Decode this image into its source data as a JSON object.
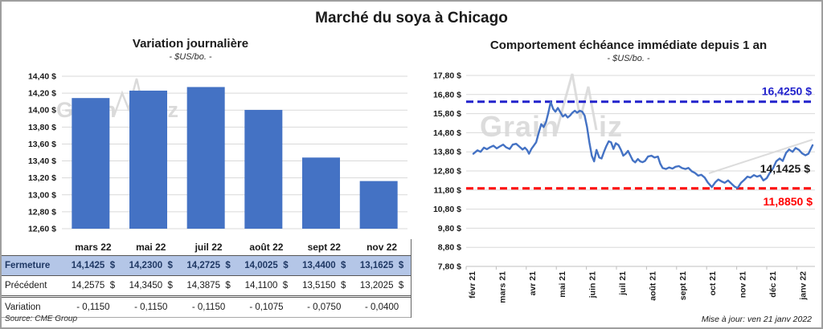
{
  "page": {
    "title": "Marché du soya à Chicago",
    "source": "Source: CME Group",
    "updated": "Mise à jour: ven 21 janv 2022",
    "watermark": "GrainViz"
  },
  "colors": {
    "bar": "#4472C4",
    "line": "#4472C4",
    "max_reference": "#2222CC",
    "min_reference": "#FF0000",
    "close_row_bg": "#B4C6E7",
    "close_row_text": "#1F3864",
    "variation_text": "#FF0000",
    "grid": "#D9D9D9",
    "axis": "#BFBFBF",
    "watermark": "#8f8f8f"
  },
  "chart_data": [
    {
      "type": "bar",
      "title": "Variation journalière",
      "subtitle": "- $US/bo. -",
      "categories": [
        "mars 22",
        "mai 22",
        "juil 22",
        "août 22",
        "sept 22",
        "nov 22"
      ],
      "values": [
        14.1425,
        14.23,
        14.2725,
        14.0025,
        13.44,
        13.1625
      ],
      "xlabel": "",
      "ylabel": "$US/bo.",
      "ylim": [
        12.6,
        14.4
      ],
      "ytick_step": 0.2,
      "ytick_labels": [
        "14,40 $",
        "14,20 $",
        "14,00 $",
        "13,80 $",
        "13,60 $",
        "13,40 $",
        "13,20 $",
        "13,00 $",
        "12,80 $",
        "12,60 $"
      ],
      "grid": true,
      "legend": "none"
    },
    {
      "type": "line",
      "title": "Comportement échéance immédiate depuis 1 an",
      "subtitle": "- $US/bo. -",
      "x_labels": [
        "févr 21",
        "mars 21",
        "avr 21",
        "mai 21",
        "juin 21",
        "juil 21",
        "août 21",
        "sept 21",
        "oct 21",
        "nov 21",
        "déc 21",
        "janv 22"
      ],
      "ylim": [
        7.8,
        17.8
      ],
      "ytick_step": 1.0,
      "ytick_labels": [
        "17,80 $",
        "16,80 $",
        "15,80 $",
        "14,80 $",
        "13,80 $",
        "12,80 $",
        "11,80 $",
        "10,80 $",
        "9,80 $",
        "8,80 $",
        "7,80 $"
      ],
      "grid": true,
      "legend": "none",
      "reference_lines": [
        {
          "id": "max",
          "value": 16.425,
          "label": "16,4250 $",
          "style": "dashed"
        },
        {
          "id": "min",
          "value": 11.885,
          "label": "11,8850 $",
          "style": "dashed"
        }
      ],
      "last_value": 14.1425,
      "last_value_label": "14,1425 $",
      "series": [
        {
          "name": "échéance immédiate",
          "points": [
            [
              0.0,
              13.7
            ],
            [
              0.012,
              13.88
            ],
            [
              0.021,
              13.8
            ],
            [
              0.031,
              14.02
            ],
            [
              0.04,
              13.94
            ],
            [
              0.05,
              14.05
            ],
            [
              0.059,
              14.12
            ],
            [
              0.069,
              13.98
            ],
            [
              0.078,
              14.08
            ],
            [
              0.088,
              14.18
            ],
            [
              0.097,
              14.03
            ],
            [
              0.107,
              13.95
            ],
            [
              0.116,
              14.18
            ],
            [
              0.126,
              14.22
            ],
            [
              0.135,
              14.08
            ],
            [
              0.145,
              13.92
            ],
            [
              0.152,
              14.02
            ],
            [
              0.159,
              13.88
            ],
            [
              0.164,
              13.7
            ],
            [
              0.171,
              13.95
            ],
            [
              0.178,
              14.12
            ],
            [
              0.185,
              14.3
            ],
            [
              0.192,
              14.75
            ],
            [
              0.2,
              15.25
            ],
            [
              0.207,
              15.1
            ],
            [
              0.214,
              15.35
            ],
            [
              0.221,
              15.85
            ],
            [
              0.228,
              16.41
            ],
            [
              0.235,
              16.05
            ],
            [
              0.242,
              15.9
            ],
            [
              0.249,
              16.1
            ],
            [
              0.257,
              15.85
            ],
            [
              0.264,
              15.65
            ],
            [
              0.271,
              15.75
            ],
            [
              0.278,
              15.6
            ],
            [
              0.285,
              15.7
            ],
            [
              0.292,
              15.85
            ],
            [
              0.299,
              15.95
            ],
            [
              0.306,
              15.85
            ],
            [
              0.314,
              15.95
            ],
            [
              0.321,
              15.9
            ],
            [
              0.328,
              15.7
            ],
            [
              0.335,
              15.1
            ],
            [
              0.342,
              14.3
            ],
            [
              0.349,
              13.6
            ],
            [
              0.356,
              13.3
            ],
            [
              0.363,
              13.9
            ],
            [
              0.371,
              13.5
            ],
            [
              0.378,
              13.45
            ],
            [
              0.385,
              13.8
            ],
            [
              0.392,
              14.1
            ],
            [
              0.399,
              14.35
            ],
            [
              0.406,
              14.3
            ],
            [
              0.413,
              13.95
            ],
            [
              0.42,
              14.25
            ],
            [
              0.428,
              14.15
            ],
            [
              0.435,
              13.9
            ],
            [
              0.442,
              13.6
            ],
            [
              0.449,
              13.7
            ],
            [
              0.456,
              13.85
            ],
            [
              0.463,
              13.6
            ],
            [
              0.47,
              13.35
            ],
            [
              0.477,
              13.25
            ],
            [
              0.485,
              13.42
            ],
            [
              0.492,
              13.3
            ],
            [
              0.499,
              13.26
            ],
            [
              0.506,
              13.32
            ],
            [
              0.515,
              13.55
            ],
            [
              0.525,
              13.6
            ],
            [
              0.534,
              13.5
            ],
            [
              0.544,
              13.55
            ],
            [
              0.551,
              13.18
            ],
            [
              0.558,
              12.95
            ],
            [
              0.568,
              12.9
            ],
            [
              0.577,
              12.98
            ],
            [
              0.587,
              12.92
            ],
            [
              0.596,
              13.02
            ],
            [
              0.606,
              13.05
            ],
            [
              0.615,
              12.95
            ],
            [
              0.625,
              12.9
            ],
            [
              0.634,
              12.96
            ],
            [
              0.644,
              12.78
            ],
            [
              0.653,
              12.7
            ],
            [
              0.663,
              12.55
            ],
            [
              0.672,
              12.6
            ],
            [
              0.682,
              12.45
            ],
            [
              0.691,
              12.2
            ],
            [
              0.703,
              11.95
            ],
            [
              0.713,
              12.2
            ],
            [
              0.722,
              12.35
            ],
            [
              0.732,
              12.25
            ],
            [
              0.741,
              12.18
            ],
            [
              0.751,
              12.3
            ],
            [
              0.76,
              12.15
            ],
            [
              0.77,
              11.98
            ],
            [
              0.779,
              11.9
            ],
            [
              0.789,
              12.18
            ],
            [
              0.798,
              12.32
            ],
            [
              0.808,
              12.5
            ],
            [
              0.817,
              12.45
            ],
            [
              0.827,
              12.58
            ],
            [
              0.836,
              12.5
            ],
            [
              0.846,
              12.56
            ],
            [
              0.855,
              12.3
            ],
            [
              0.865,
              12.42
            ],
            [
              0.874,
              12.7
            ],
            [
              0.884,
              12.95
            ],
            [
              0.893,
              13.3
            ],
            [
              0.903,
              13.45
            ],
            [
              0.912,
              13.32
            ],
            [
              0.922,
              13.75
            ],
            [
              0.931,
              13.92
            ],
            [
              0.941,
              13.8
            ],
            [
              0.95,
              14.0
            ],
            [
              0.96,
              13.9
            ],
            [
              0.969,
              13.72
            ],
            [
              0.979,
              13.62
            ],
            [
              0.988,
              13.7
            ],
            [
              1.0,
              14.1425
            ]
          ]
        }
      ]
    }
  ],
  "table": {
    "columns": [
      "mars 22",
      "mai 22",
      "juil 22",
      "août 22",
      "sept 22",
      "nov 22"
    ],
    "rows": [
      {
        "label": "Fermeture",
        "values": [
          "14,1425  $",
          "14,2300  $",
          "14,2725  $",
          "14,0025  $",
          "13,4400  $",
          "13,1625  $"
        ]
      },
      {
        "label": "Précédent",
        "values": [
          "14,2575  $",
          "14,3450  $",
          "14,3875  $",
          "14,1100  $",
          "13,5150  $",
          "13,2025  $"
        ]
      },
      {
        "label": "Variation",
        "values": [
          "- 0,1150",
          "- 0,1150",
          "- 0,1150",
          "- 0,1075",
          "- 0,0750",
          "- 0,0400"
        ]
      }
    ]
  }
}
